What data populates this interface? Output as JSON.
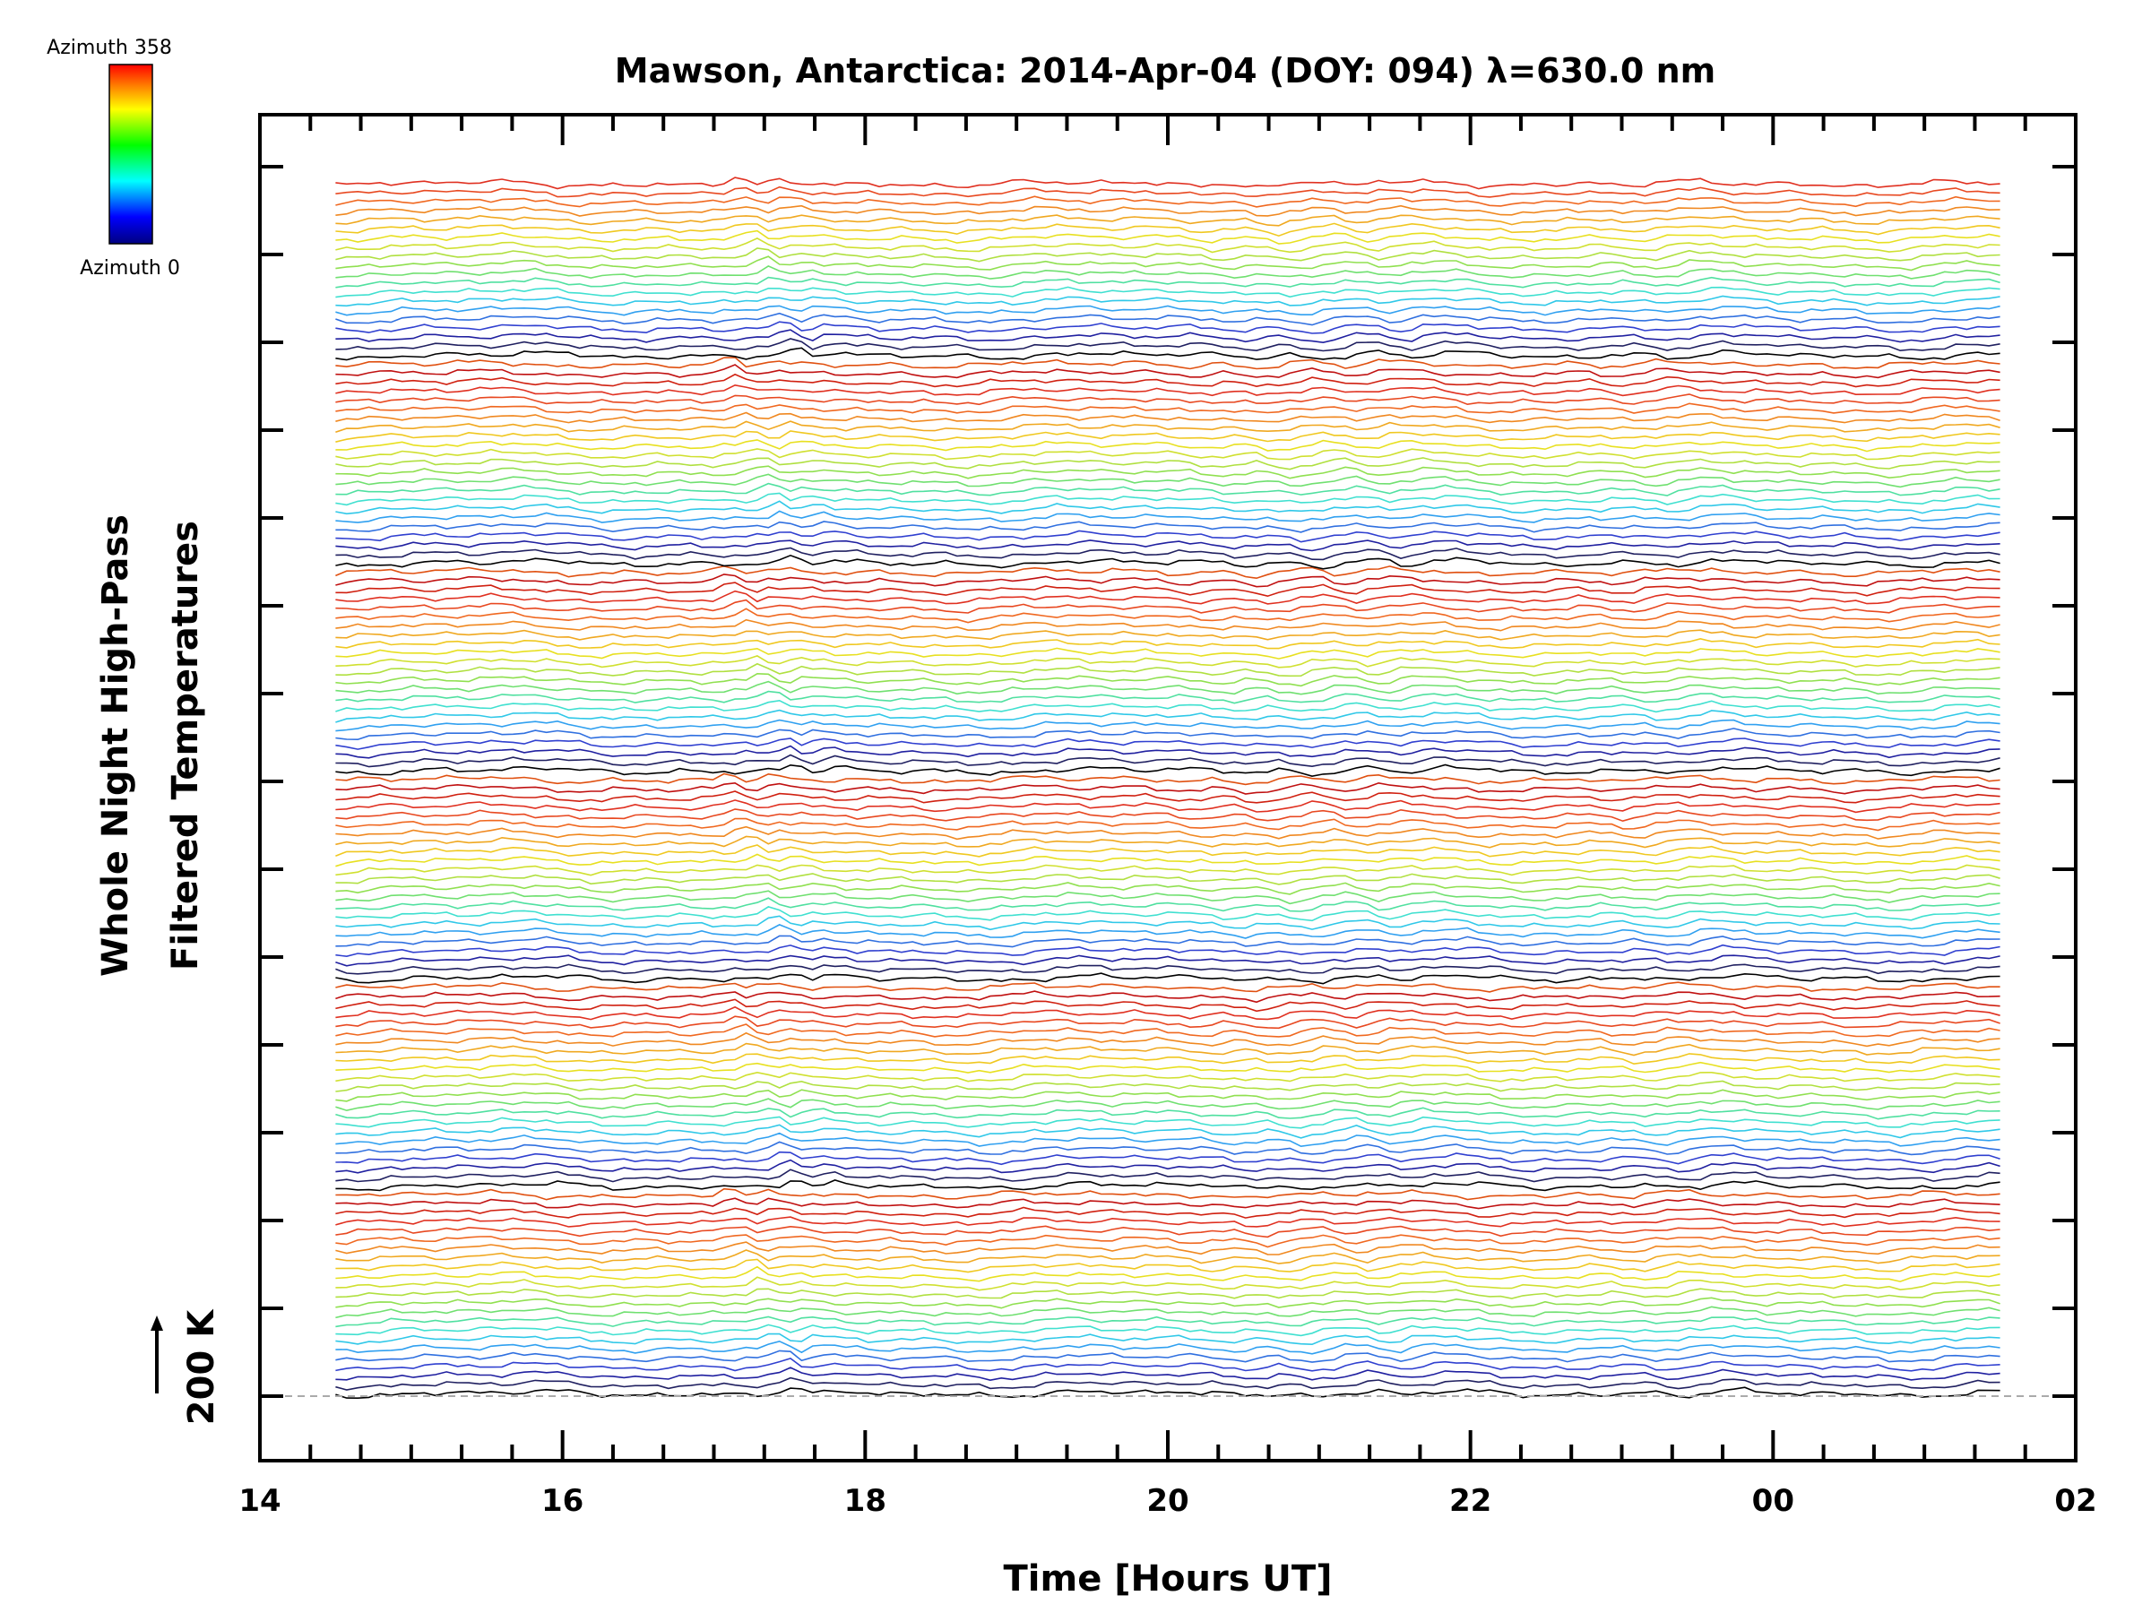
{
  "chart_data": {
    "type": "line",
    "title": "Mawson, Antarctica: 2014-Apr-04 (DOY: 094) λ=630.0 nm",
    "xlabel": "Time [Hours UT]",
    "ylabel_line1": "Whole Night High-Pass",
    "ylabel_line2": "Filtered Temperatures",
    "scale_label": "200 K",
    "x_tick_labels": [
      "14",
      "16",
      "18",
      "20",
      "22",
      "00",
      "02"
    ],
    "xlim": [
      14,
      26
    ],
    "x_data_range": [
      14.5,
      25.5
    ],
    "colorbar": {
      "top_label": "Azimuth 358",
      "bottom_label": "Azimuth 0",
      "colors": [
        "#000080",
        "#0000ff",
        "#00ffff",
        "#00ff00",
        "#ffff00",
        "#ff8000",
        "#ff0000"
      ]
    },
    "stack": {
      "num_traces": 135,
      "traces_per_sweep": 23,
      "sweep_colors": [
        "#000000",
        "#202060",
        "#2020a0",
        "#3040d0",
        "#3070e0",
        "#30a0f0",
        "#30c8e8",
        "#40e0d0",
        "#50e0a0",
        "#70e070",
        "#90e050",
        "#b0e040",
        "#d0e030",
        "#e8e020",
        "#f0c820",
        "#f0a820",
        "#f08820",
        "#f06820",
        "#e84820",
        "#e03020",
        "#d02010",
        "#c01010",
        "#e05010"
      ]
    }
  }
}
